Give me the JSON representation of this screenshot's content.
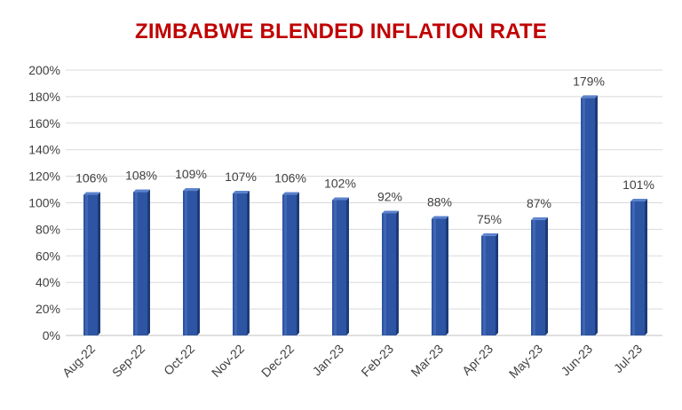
{
  "chart_data": {
    "type": "bar",
    "title": "ZIMBABWE BLENDED INFLATION RATE",
    "xlabel": "",
    "ylabel": "",
    "categories": [
      "Aug-22",
      "Sep-22",
      "Oct-22",
      "Nov-22",
      "Dec-22",
      "Jan-23",
      "Feb-23",
      "Mar-23",
      "Apr-23",
      "May-23",
      "Jun-23",
      "Jul-23"
    ],
    "values": [
      106,
      108,
      109,
      107,
      106,
      102,
      92,
      88,
      75,
      87,
      179,
      101
    ],
    "data_labels": [
      "106%",
      "108%",
      "109%",
      "107%",
      "106%",
      "102%",
      "92%",
      "88%",
      "75%",
      "87%",
      "179%",
      "101%"
    ],
    "y_ticks": [
      "0%",
      "20%",
      "40%",
      "60%",
      "80%",
      "100%",
      "120%",
      "140%",
      "160%",
      "180%",
      "200%"
    ],
    "ylim": [
      0,
      200
    ],
    "grid": true,
    "colors": {
      "title": "#c00000",
      "bar": "#2e55a3",
      "bar_dark": "#1c3a78",
      "bar_light": "#5b82cc",
      "grid": "#d9d9d9",
      "text": "#404040"
    }
  }
}
